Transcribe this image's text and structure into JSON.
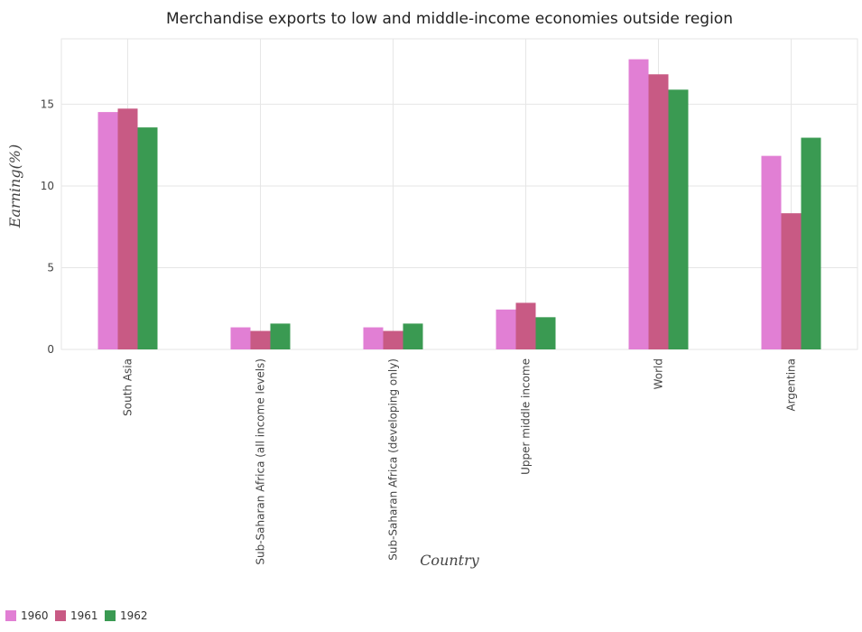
{
  "chart_data": {
    "type": "bar",
    "title": "Merchandise exports to low and middle-income economies outside region",
    "xlabel": "Country",
    "ylabel": "Earning(%)",
    "ylim": [
      0,
      19
    ],
    "yticks": [
      0,
      5,
      10,
      15
    ],
    "categories": [
      "South Asia",
      "Sub-Saharan Africa (all income levels)",
      "Sub-Saharan Africa (developing only)",
      "Upper middle income",
      "World",
      "Argentina"
    ],
    "series": [
      {
        "name": "1960",
        "color": "#e17fd4",
        "values": [
          14.52,
          1.35,
          1.35,
          2.44,
          17.75,
          11.84
        ]
      },
      {
        "name": "1961",
        "color": "#c85a84",
        "values": [
          14.73,
          1.13,
          1.13,
          2.85,
          16.83,
          8.33
        ]
      },
      {
        "name": "1962",
        "color": "#3a9a52",
        "values": [
          13.58,
          1.58,
          1.58,
          1.97,
          15.89,
          12.95
        ]
      }
    ],
    "grid": true,
    "legend_position": "bottom-left"
  }
}
